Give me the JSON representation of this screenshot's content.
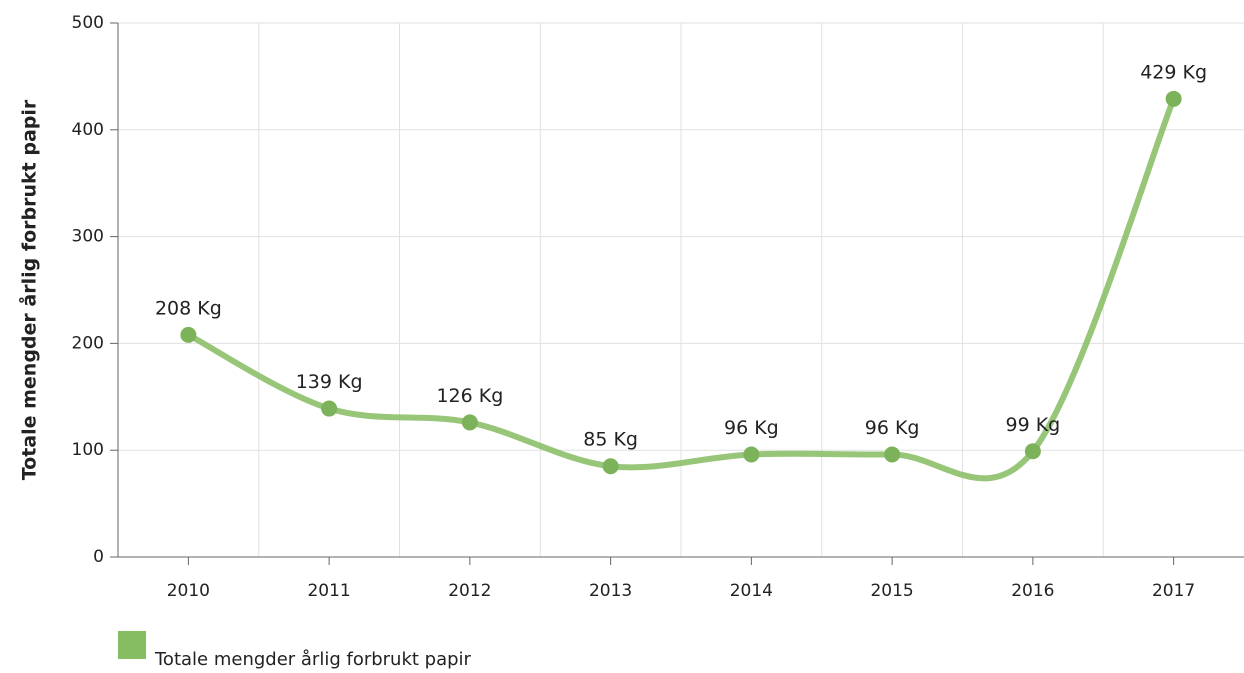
{
  "chart_data": {
    "type": "line",
    "y_label": "Totale mengder årlig forbrukt papir",
    "categories": [
      "2010",
      "2011",
      "2012",
      "2013",
      "2014",
      "2015",
      "2016",
      "2017"
    ],
    "series": [
      {
        "name": "Totale mengder årlig forbrukt papir",
        "color": "#86bc62",
        "values": [
          208,
          139,
          126,
          85,
          96,
          96,
          99,
          429
        ],
        "value_labels": [
          "208 Kg",
          "139 Kg",
          "126 Kg",
          "85 Kg",
          "96 Kg",
          "96 Kg",
          "99 Kg",
          "429 Kg"
        ]
      }
    ],
    "ylim": [
      0,
      500
    ],
    "yticks": [
      0,
      100,
      200,
      300,
      400,
      500
    ],
    "grid": true,
    "legend": "bottom-left"
  }
}
